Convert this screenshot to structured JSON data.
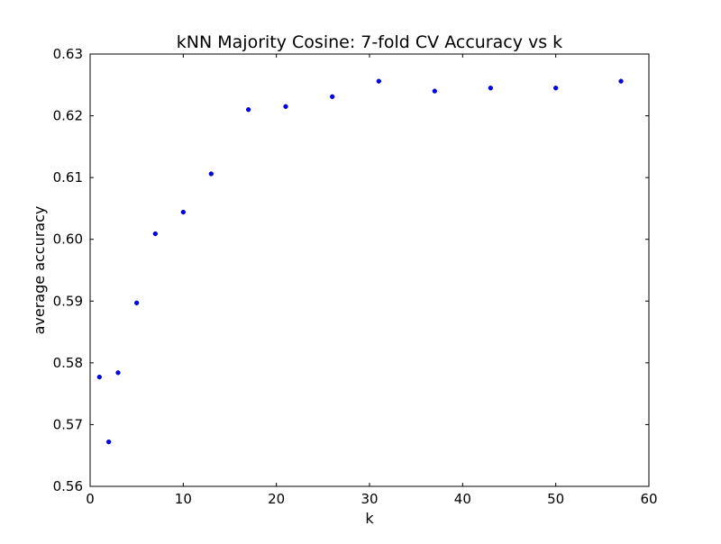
{
  "chart_data": {
    "type": "scatter",
    "title": "kNN Majority Cosine: 7-fold CV Accuracy vs k",
    "xlabel": "k",
    "ylabel": "average accuracy",
    "xlim": [
      0,
      60
    ],
    "ylim": [
      0.56,
      0.63
    ],
    "x_ticks": [
      0,
      10,
      20,
      30,
      40,
      50,
      60
    ],
    "y_ticks": [
      0.56,
      0.57,
      0.58,
      0.59,
      0.6,
      0.61,
      0.62,
      0.63
    ],
    "x_tick_labels": [
      "0",
      "10",
      "20",
      "30",
      "40",
      "50",
      "60"
    ],
    "y_tick_labels": [
      "0.56",
      "0.57",
      "0.58",
      "0.59",
      "0.60",
      "0.61",
      "0.62",
      "0.63"
    ],
    "grid": false,
    "legend": "none",
    "marker_color": "#0000ff",
    "series": [
      {
        "x": [
          1,
          2,
          3,
          5,
          7,
          10,
          13,
          17,
          21,
          26,
          31,
          37,
          43,
          50,
          57
        ],
        "y": [
          0.5777,
          0.5672,
          0.5784,
          0.5897,
          0.6009,
          0.6044,
          0.6106,
          0.621,
          0.6215,
          0.6231,
          0.6256,
          0.624,
          0.6245,
          0.6245,
          0.6256
        ]
      }
    ]
  }
}
